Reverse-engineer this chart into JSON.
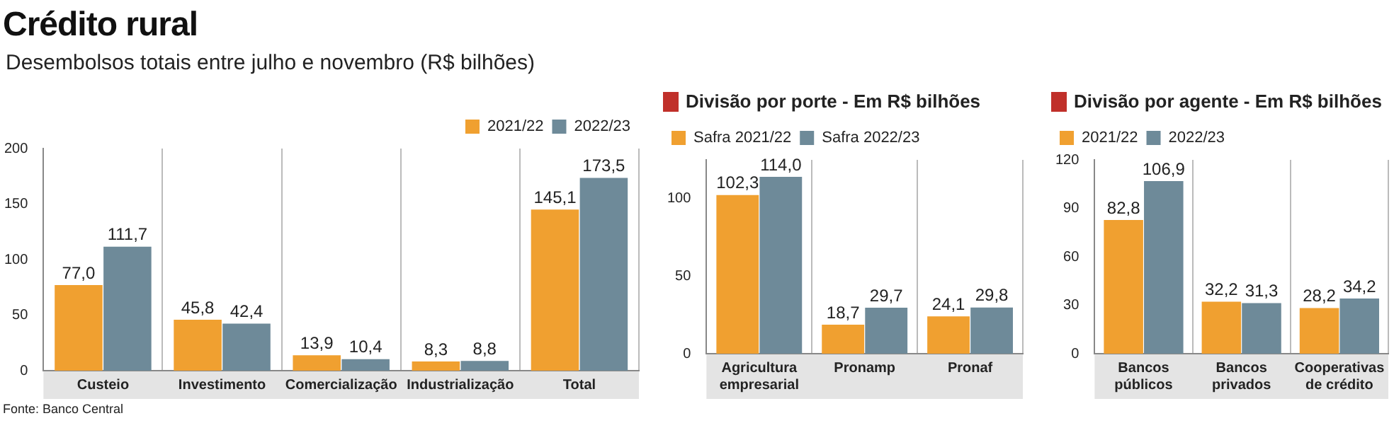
{
  "chart_data": [
    {
      "type": "bar",
      "title": "Crédito rural",
      "subtitle": "Desembolsos totais entre julho e novembro (R$ bilhões)",
      "annotations": [
        "Fonte: Banco Central"
      ],
      "categories": [
        "Custeio",
        "Investimento",
        "Comercialização",
        "Industrialização",
        "Total"
      ],
      "series": [
        {
          "name": "2021/22",
          "color": "#f0a030",
          "values": [
            77.0,
            45.8,
            13.9,
            8.3,
            145.1
          ],
          "value_labels": [
            "77,0",
            "45,8",
            "13,9",
            "8,3",
            "145,1"
          ]
        },
        {
          "name": "2022/23",
          "color": "#6e8a99",
          "values": [
            111.7,
            42.4,
            10.4,
            8.8,
            173.5
          ],
          "value_labels": [
            "111,7",
            "42,4",
            "10,4",
            "8,8",
            "173,5"
          ]
        }
      ],
      "ylim": [
        0,
        200
      ],
      "yticks": [
        0,
        50,
        100,
        150,
        200
      ],
      "grid": "x",
      "legend": "top right"
    },
    {
      "type": "bar",
      "title": "Divisão por porte - Em R$ bilhões",
      "categories": [
        "Agricultura empresarial",
        "Pronamp",
        "Pronaf"
      ],
      "series": [
        {
          "name": "Safra 2021/22",
          "color": "#f0a030",
          "values": [
            102.3,
            18.7,
            24.1
          ],
          "value_labels": [
            "102,3",
            "18,7",
            "24,1"
          ]
        },
        {
          "name": "Safra 2022/23",
          "color": "#6e8a99",
          "values": [
            114.0,
            29.7,
            29.8
          ],
          "value_labels": [
            "114,0",
            "29,7",
            "29,8"
          ]
        }
      ],
      "ylim": [
        0,
        125
      ],
      "yticks": [
        0,
        50,
        100
      ],
      "grid": "x",
      "legend": "top left"
    },
    {
      "type": "bar",
      "title": "Divisão por agente - Em R$ bilhões",
      "categories": [
        "Bancos públicos",
        "Bancos privados",
        "Cooperativas de crédito"
      ],
      "series": [
        {
          "name": "2021/22",
          "color": "#f0a030",
          "values": [
            82.8,
            32.2,
            28.2
          ],
          "value_labels": [
            "82,8",
            "32,2",
            "28,2"
          ]
        },
        {
          "name": "2022/23",
          "color": "#6e8a99",
          "values": [
            106.9,
            31.3,
            34.2
          ],
          "value_labels": [
            "106,9",
            "31,3",
            "34,2"
          ]
        }
      ],
      "ylim": [
        0,
        120
      ],
      "yticks": [
        0,
        30,
        60,
        90,
        120
      ],
      "grid": "x",
      "legend": "top left"
    }
  ]
}
